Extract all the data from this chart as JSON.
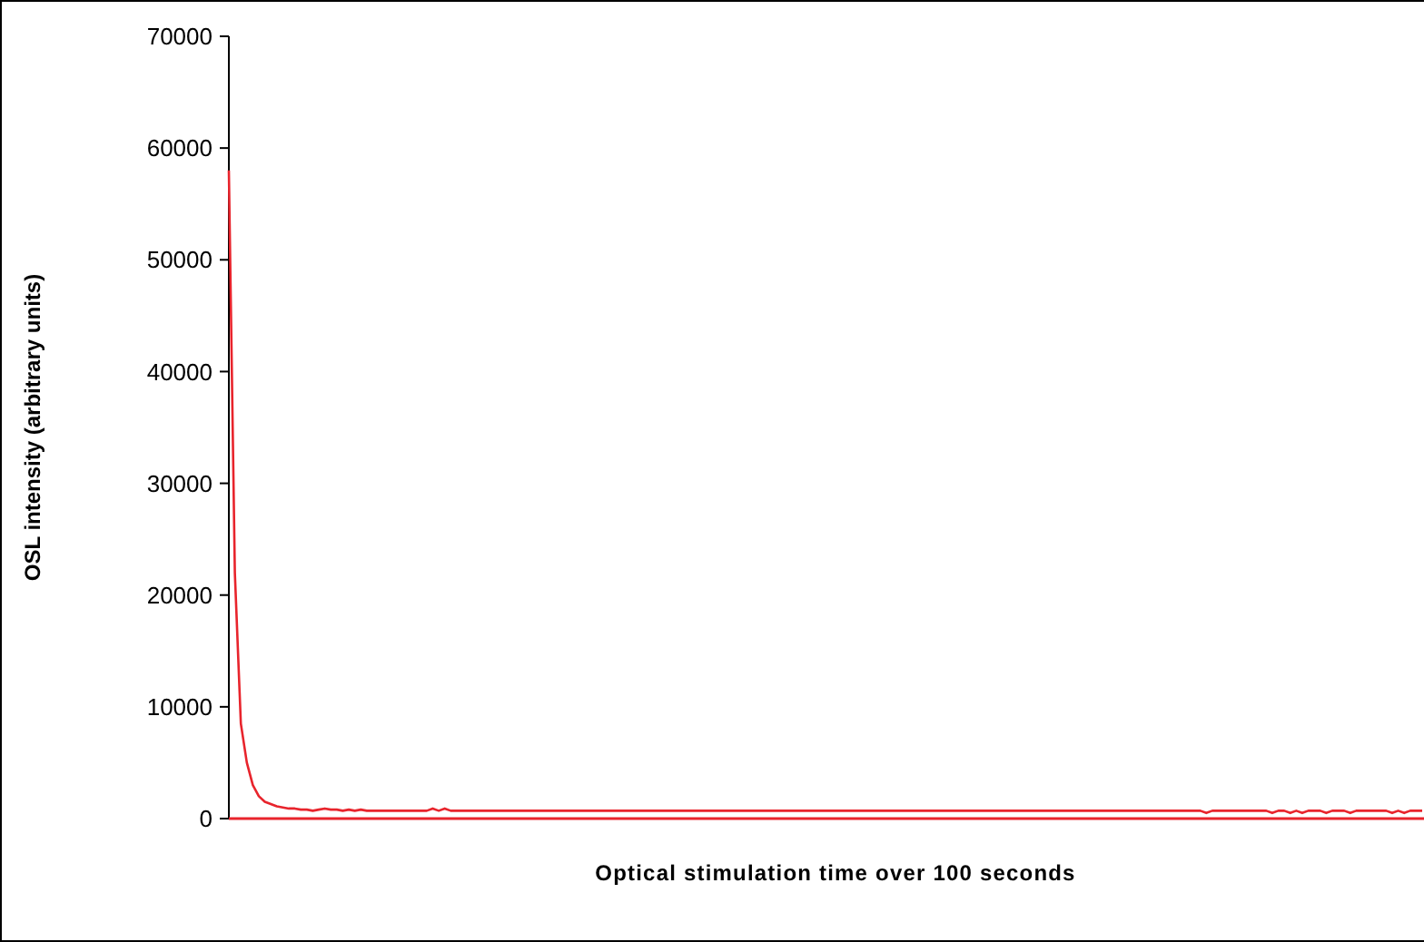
{
  "chart_data": {
    "type": "line",
    "xlabel": "Optical stimulation time over 100 seconds",
    "ylabel": "OSL intensity (arbitrary units)",
    "ylim": [
      0,
      70000
    ],
    "yticks": [
      0,
      10000,
      20000,
      30000,
      40000,
      50000,
      60000,
      70000
    ],
    "grid": false,
    "marker": "none",
    "line_style": "solid",
    "tick_labels": "y",
    "categories": [
      null,
      null,
      null,
      null,
      null,
      null,
      null,
      null,
      null,
      null,
      null,
      null,
      null,
      null,
      null,
      null,
      null,
      null,
      null,
      null,
      null,
      null,
      null,
      null,
      null,
      null,
      null,
      null,
      null,
      null,
      null,
      null,
      null,
      null,
      null,
      null,
      null,
      null,
      null,
      null,
      null,
      null,
      null,
      null,
      null,
      null,
      null,
      null,
      null,
      null,
      null,
      null,
      null,
      null,
      null,
      null,
      null,
      null,
      null,
      null,
      null,
      null,
      null,
      null,
      null,
      null,
      null,
      null,
      null,
      null,
      null,
      null,
      null,
      null,
      null,
      null,
      null,
      null,
      null,
      null,
      null,
      null,
      null,
      null,
      null,
      null,
      null,
      null,
      null,
      null,
      null,
      null,
      null,
      null,
      null,
      null,
      null,
      null,
      null,
      null,
      null,
      null,
      null,
      null,
      null,
      null,
      null,
      null,
      null,
      null,
      null,
      null,
      null,
      null,
      null,
      null,
      null,
      null,
      null,
      null,
      null,
      null,
      null,
      null,
      null,
      null,
      null,
      null,
      null,
      null,
      null,
      null,
      null,
      null,
      null,
      null,
      null,
      null,
      null,
      null,
      null,
      null,
      null,
      null,
      null,
      null,
      null,
      null,
      null,
      null,
      null,
      null,
      null,
      null,
      null,
      null,
      null,
      null,
      null,
      null,
      null,
      null,
      null,
      null,
      null,
      null,
      null,
      null,
      null,
      null,
      null,
      null,
      null,
      null,
      null,
      null,
      null,
      null,
      null,
      null,
      null,
      null,
      null,
      null,
      null,
      null,
      null,
      null,
      null,
      null,
      null,
      null,
      null,
      null,
      null,
      null,
      null,
      null,
      null,
      null
    ],
    "series": [
      {
        "color": "#e8242c",
        "values": [
          58000,
          22000,
          8500,
          5000,
          3000,
          2000,
          1500,
          1300,
          1100,
          1000,
          900,
          900,
          800,
          800,
          700,
          800,
          900,
          800,
          800,
          700,
          800,
          700,
          800,
          700,
          700,
          700,
          700,
          700,
          700,
          700,
          700,
          700,
          700,
          700,
          900,
          700,
          900,
          700,
          700,
          700,
          700,
          700,
          700,
          700,
          700,
          700,
          700,
          700,
          700,
          700,
          700,
          700,
          700,
          700,
          700,
          700,
          700,
          700,
          700,
          700,
          700,
          700,
          700,
          700,
          700,
          700,
          700,
          700,
          700,
          700,
          700,
          700,
          700,
          700,
          700,
          700,
          700,
          700,
          700,
          700,
          700,
          700,
          700,
          700,
          700,
          700,
          700,
          700,
          700,
          700,
          700,
          700,
          700,
          700,
          700,
          700,
          700,
          700,
          700,
          700,
          700,
          700,
          700,
          700,
          700,
          700,
          700,
          700,
          700,
          700,
          700,
          700,
          700,
          700,
          700,
          700,
          700,
          700,
          700,
          700,
          700,
          700,
          700,
          700,
          700,
          700,
          700,
          700,
          700,
          700,
          700,
          700,
          700,
          700,
          700,
          700,
          700,
          700,
          700,
          700,
          700,
          700,
          700,
          700,
          700,
          700,
          700,
          700,
          700,
          700,
          700,
          700,
          700,
          700,
          700,
          700,
          700,
          700,
          700,
          700,
          700,
          700,
          700,
          500,
          700,
          700,
          700,
          700,
          700,
          700,
          700,
          700,
          700,
          700,
          500,
          700,
          700,
          500,
          700,
          500,
          700,
          700,
          700,
          500,
          700,
          700,
          700,
          500,
          700,
          700,
          700,
          700,
          700,
          700,
          500,
          700,
          500,
          700,
          700,
          700
        ]
      }
    ]
  }
}
